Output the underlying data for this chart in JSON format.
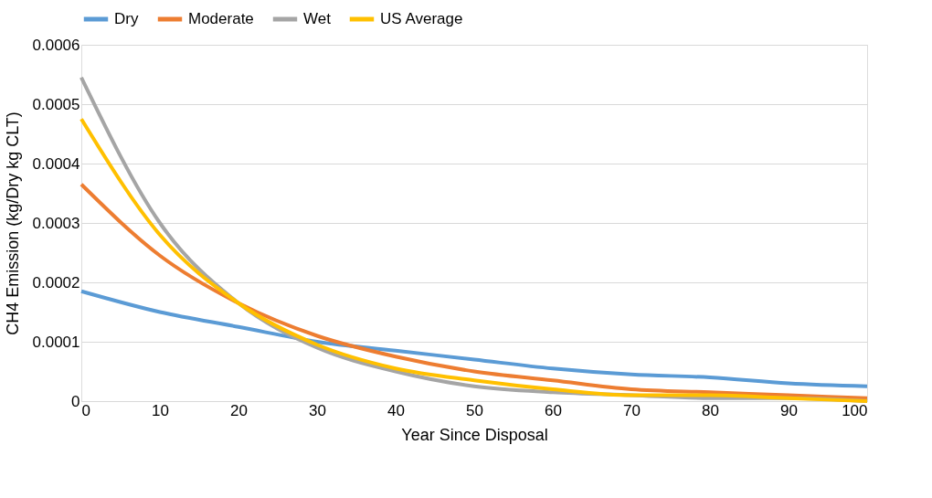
{
  "chart_data": {
    "type": "line",
    "xlabel": "Year Since Disposal",
    "ylabel": "CH4 Emission (kg/Dry kg CLT)",
    "x": [
      0,
      10,
      20,
      30,
      40,
      50,
      60,
      70,
      80,
      90,
      100
    ],
    "series": [
      {
        "name": "Dry",
        "color": "#5b9bd5",
        "values": [
          0.000185,
          0.00015,
          0.000125,
          0.0001,
          8.5e-05,
          7e-05,
          5.5e-05,
          4.5e-05,
          4e-05,
          3e-05,
          2.5e-05
        ]
      },
      {
        "name": "Moderate",
        "color": "#ed7d31",
        "values": [
          0.000365,
          0.000245,
          0.000165,
          0.00011,
          7.5e-05,
          5e-05,
          3.5e-05,
          2e-05,
          1.5e-05,
          1e-05,
          5e-06
        ]
      },
      {
        "name": "Wet",
        "color": "#a5a5a5",
        "values": [
          0.000545,
          0.0003,
          0.000165,
          9e-05,
          5e-05,
          2.5e-05,
          1.5e-05,
          1e-05,
          5e-06,
          5e-06,
          0
        ]
      },
      {
        "name": "US Average",
        "color": "#ffc000",
        "values": [
          0.000475,
          0.00028,
          0.000165,
          9.5e-05,
          5.5e-05,
          3.5e-05,
          2e-05,
          1e-05,
          1e-05,
          5e-06,
          0
        ]
      }
    ],
    "xlim": [
      0,
      100
    ],
    "xticks": [
      0,
      10,
      20,
      30,
      40,
      50,
      60,
      70,
      80,
      90,
      100
    ],
    "ylim": [
      0,
      0.0006
    ],
    "yticks": [
      0,
      0.0001,
      0.0002,
      0.0003,
      0.0004,
      0.0005,
      0.0006
    ],
    "grid": "y",
    "legend": "top",
    "marker": "none",
    "line_style": "solid"
  }
}
